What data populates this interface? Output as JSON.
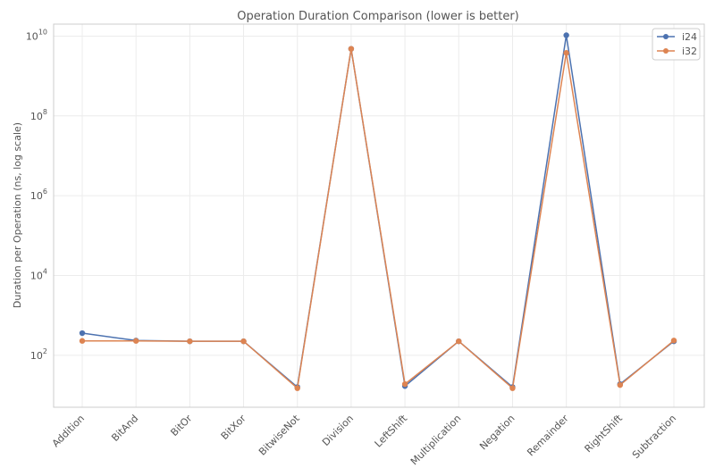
{
  "chart_data": {
    "type": "line",
    "title": "Operation Duration Comparison (lower is better)",
    "xlabel": "",
    "ylabel": "Duration per Operation (ns, log scale)",
    "y_scale": "log",
    "ylim": [
      5,
      20000000000
    ],
    "y_ticks": [
      {
        "value": 100,
        "base": "10",
        "exp": "2"
      },
      {
        "value": 10000,
        "base": "10",
        "exp": "4"
      },
      {
        "value": 1000000,
        "base": "10",
        "exp": "6"
      },
      {
        "value": 100000000,
        "base": "10",
        "exp": "8"
      },
      {
        "value": 10000000000,
        "base": "10",
        "exp": "10"
      }
    ],
    "grid": true,
    "legend_position": "top-right",
    "categories": [
      "Addition",
      "BitAnd",
      "BitOr",
      "BitXor",
      "BitwiseNot",
      "Division",
      "LeftShift",
      "Multiplication",
      "Negation",
      "Remainder",
      "RightShift",
      "Subtraction"
    ],
    "series": [
      {
        "name": "i24",
        "color": "#4c72b0",
        "values": [
          360,
          235,
          225,
          225,
          16,
          4800000000,
          17,
          225,
          16,
          10500000000,
          19,
          225
        ]
      },
      {
        "name": "i32",
        "color": "#dd8452",
        "values": [
          230,
          230,
          225,
          225,
          15,
          4800000000,
          19,
          225,
          15,
          3800000000,
          18,
          235
        ]
      }
    ]
  }
}
